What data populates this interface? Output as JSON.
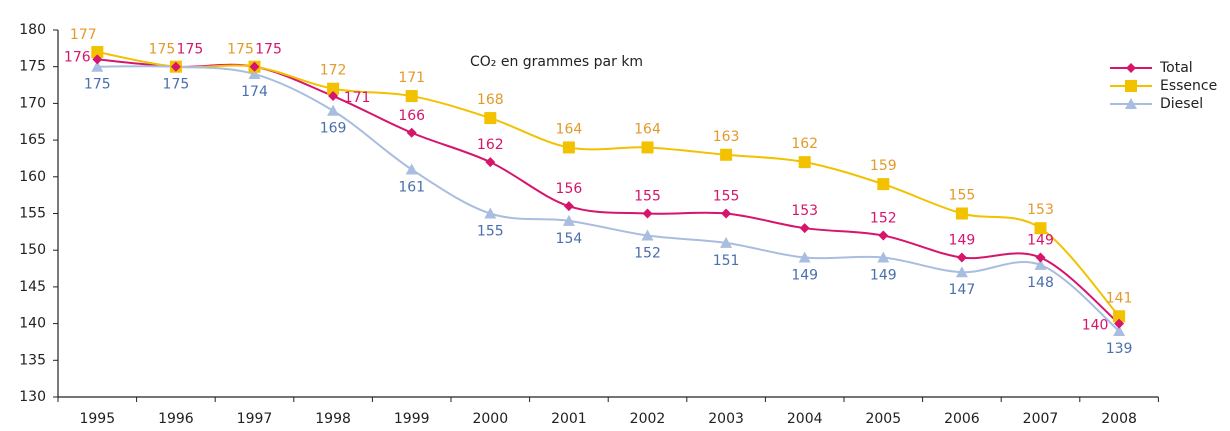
{
  "chart_data": {
    "type": "line",
    "title": "CO₂ en grammes par km",
    "categories": [
      "1995",
      "1996",
      "1997",
      "1998",
      "1999",
      "2000",
      "2001",
      "2002",
      "2003",
      "2004",
      "2005",
      "2006",
      "2007",
      "2008"
    ],
    "series": [
      {
        "name": "Total",
        "color": "#d6156c",
        "label_color": "#d6156c",
        "marker": "diamond",
        "values": [
          176,
          175,
          175,
          171,
          166,
          162,
          156,
          155,
          155,
          153,
          152,
          149,
          149,
          140
        ]
      },
      {
        "name": "Essence",
        "color": "#f2c100",
        "label_color": "#e39a2a",
        "marker": "square",
        "values": [
          177,
          175,
          175,
          172,
          171,
          168,
          164,
          164,
          163,
          162,
          159,
          155,
          153,
          141
        ]
      },
      {
        "name": "Diesel",
        "color": "#a9bde0",
        "label_color": "#4a6fae",
        "marker": "triangle",
        "values": [
          175,
          175,
          174,
          169,
          161,
          155,
          154,
          152,
          151,
          149,
          149,
          147,
          148,
          139
        ]
      }
    ],
    "ylim": [
      130,
      180
    ],
    "yticks": [
      130,
      135,
      140,
      145,
      150,
      155,
      160,
      165,
      170,
      175,
      180
    ],
    "legend": "right"
  }
}
